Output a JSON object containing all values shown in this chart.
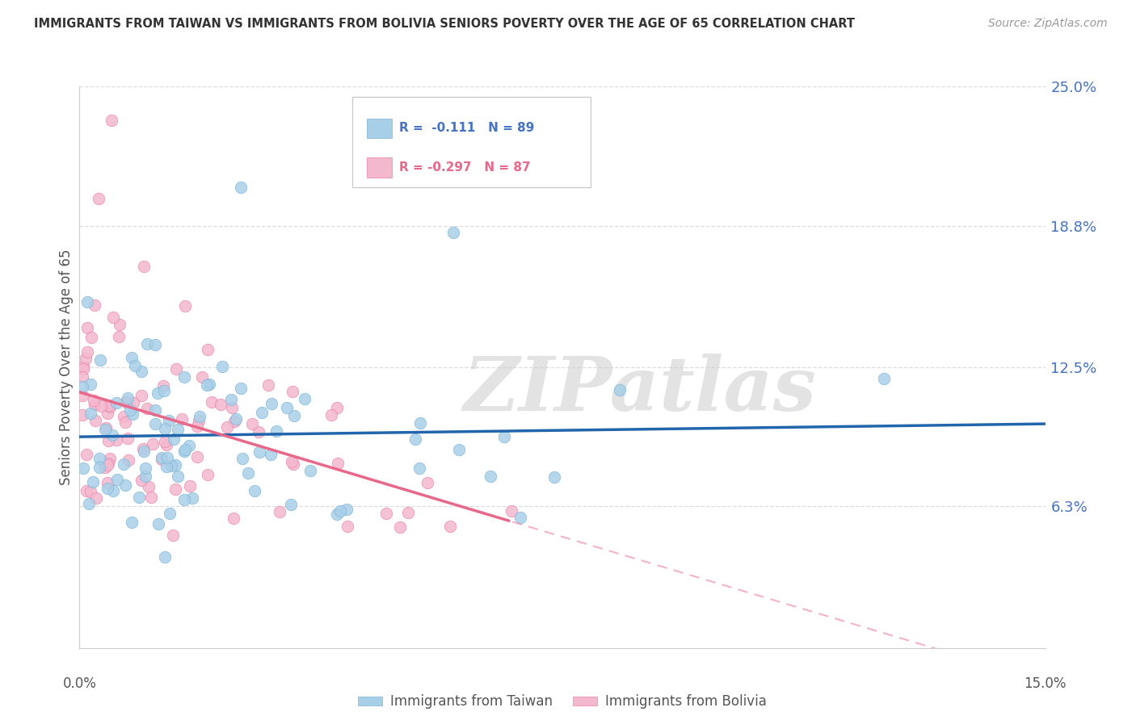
{
  "title": "IMMIGRANTS FROM TAIWAN VS IMMIGRANTS FROM BOLIVIA SENIORS POVERTY OVER THE AGE OF 65 CORRELATION CHART",
  "source": "Source: ZipAtlas.com",
  "ylabel": "Seniors Poverty Over the Age of 65",
  "xlim": [
    0.0,
    15.0
  ],
  "ylim": [
    0.0,
    25.0
  ],
  "ytick_vals": [
    0.0,
    6.3,
    12.5,
    18.8,
    25.0
  ],
  "ytick_labels": [
    "",
    "6.3%",
    "12.5%",
    "18.8%",
    "25.0%"
  ],
  "taiwan_color": "#a8cfe8",
  "taiwan_edge_color": "#7ab3d4",
  "bolivia_color": "#f4b8ce",
  "bolivia_edge_color": "#e87fa8",
  "taiwan_line_color": "#2166ac",
  "bolivia_line_color": "#e8688a",
  "taiwan_R": -0.111,
  "taiwan_N": 89,
  "bolivia_R": -0.297,
  "bolivia_N": 87,
  "watermark": "ZIPatlas",
  "legend_taiwan_label": "Immigrants from Taiwan",
  "legend_bolivia_label": "Immigrants from Bolivia"
}
